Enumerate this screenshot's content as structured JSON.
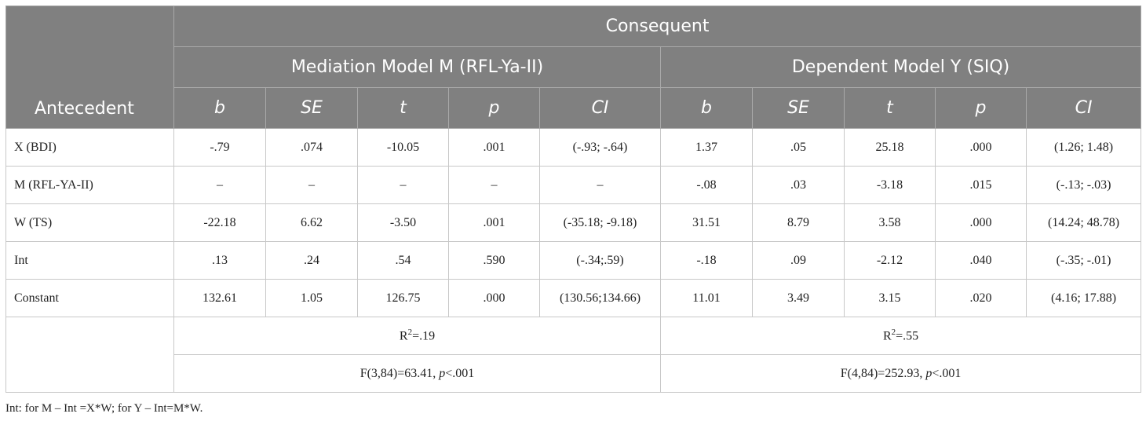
{
  "table": {
    "antecedent": "Antecedent",
    "consequent": "Consequent",
    "models": [
      {
        "title": "Mediation Model M (RFL-Ya-II)",
        "columns": [
          "b",
          "SE",
          "t",
          "p",
          "CI"
        ],
        "r2": {
          "base": "R",
          "sup": "2",
          "rest": "=.19"
        },
        "f": {
          "before": "F(3,84)=63.41, ",
          "italic": "p",
          "after": "<.001"
        }
      },
      {
        "title": "Dependent Model Y (SIQ)",
        "columns": [
          "b",
          "SE",
          "t",
          "p",
          "CI"
        ],
        "r2": {
          "base": "R",
          "sup": "2",
          "rest": "=.55"
        },
        "f": {
          "before": "F(4,84)=252.93, ",
          "italic": "p",
          "after": "<.001"
        }
      }
    ],
    "rows": [
      {
        "label": "X (BDI)",
        "cells": [
          "-.79",
          ".074",
          "-10.05",
          ".001",
          "(-.93; -.64)",
          "1.37",
          ".05",
          "25.18",
          ".000",
          "(1.26; 1.48)"
        ]
      },
      {
        "label": "M (RFL-YA-II)",
        "cells": [
          "–",
          "–",
          "–",
          "–",
          "–",
          "-.08",
          ".03",
          "-3.18",
          ".015",
          "(-.13; -.03)"
        ]
      },
      {
        "label": "W (TS)",
        "cells": [
          "-22.18",
          "6.62",
          "-3.50",
          ".001",
          "(-35.18; -9.18)",
          "31.51",
          "8.79",
          "3.58",
          ".000",
          "(14.24; 48.78)"
        ]
      },
      {
        "label": "Int",
        "cells": [
          ".13",
          ".24",
          ".54",
          ".590",
          "(-.34;.59)",
          "-.18",
          ".09",
          "-2.12",
          ".040",
          "(-.35; -.01)"
        ]
      },
      {
        "label": "Constant",
        "cells": [
          "132.61",
          "1.05",
          "126.75",
          ".000",
          "(130.56;134.66)",
          "11.01",
          "3.49",
          "3.15",
          ".020",
          "(4.16; 17.88)"
        ]
      }
    ],
    "footnote": "Int: for M – Int =X*W; for Y – Int=M*W."
  }
}
